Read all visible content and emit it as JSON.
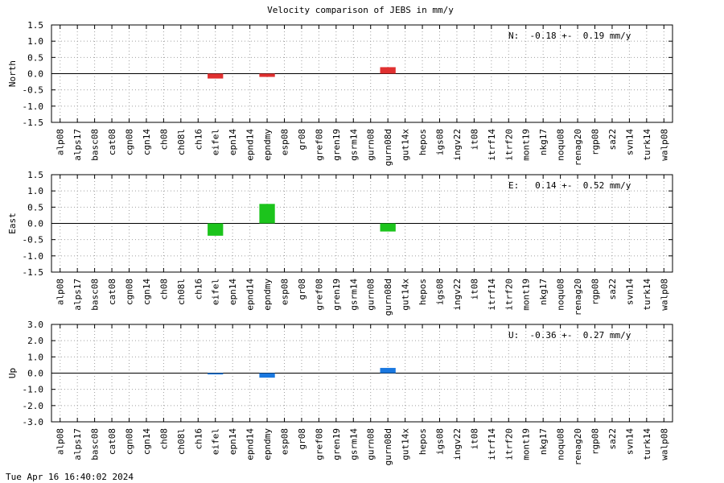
{
  "title": "Velocity comparison of JEBS in mm/y",
  "timestamp": "Tue Apr 16 16:40:02 2024",
  "chart_data": [
    {
      "type": "bar",
      "ylabel": "North",
      "ylim": [
        -1.5,
        1.5
      ],
      "yticks": [
        "1.5",
        "1.0",
        "0.5",
        "0.0",
        "-0.5",
        "-1.0",
        "-1.5"
      ],
      "stat": "N:  -0.18 +-  0.19 mm/y",
      "color": "#e03030",
      "grid": true,
      "categories": [
        "alp08",
        "alps17",
        "basc08",
        "cat08",
        "cgn08",
        "cgn14",
        "ch08",
        "ch08l",
        "ch16",
        "eifel",
        "epn14",
        "epnd14",
        "epndmy",
        "esp08",
        "gr08",
        "gref08",
        "gren19",
        "gsrm14",
        "gurn08",
        "gurn08d",
        "gut14x",
        "hepos",
        "igs08",
        "ingv22",
        "it08",
        "itrf14",
        "itrf20",
        "mont19",
        "nkg17",
        "noqu08",
        "renag20",
        "rgp08",
        "sa22",
        "svn14",
        "turk14",
        "walp08"
      ],
      "values": [
        0,
        0,
        0,
        0,
        0,
        0,
        0,
        0,
        0,
        -0.15,
        0,
        0,
        -0.1,
        0,
        0,
        0,
        0,
        0,
        0,
        0.2,
        0,
        0,
        0,
        0,
        0,
        0,
        0,
        0,
        0,
        0,
        0,
        0,
        0,
        0,
        0,
        0
      ]
    },
    {
      "type": "bar",
      "ylabel": "East",
      "ylim": [
        -1.5,
        1.5
      ],
      "yticks": [
        "1.5",
        "1.0",
        "0.5",
        "0.0",
        "-0.5",
        "-1.0",
        "-1.5"
      ],
      "stat": "E:   0.14 +-  0.52 mm/y",
      "color": "#1cc41c",
      "grid": true,
      "categories": [
        "alp08",
        "alps17",
        "basc08",
        "cat08",
        "cgn08",
        "cgn14",
        "ch08",
        "ch08l",
        "ch16",
        "eifel",
        "epn14",
        "epnd14",
        "epndmy",
        "esp08",
        "gr08",
        "gref08",
        "gren19",
        "gsrm14",
        "gurn08",
        "gurn08d",
        "gut14x",
        "hepos",
        "igs08",
        "ingv22",
        "it08",
        "itrf14",
        "itrf20",
        "mont19",
        "nkg17",
        "noqu08",
        "renag20",
        "rgp08",
        "sa22",
        "svn14",
        "turk14",
        "walp08"
      ],
      "values": [
        0,
        0,
        0,
        0,
        0,
        0,
        0,
        0,
        0,
        -0.38,
        0,
        0,
        0.6,
        0,
        0,
        0,
        0,
        0,
        0,
        -0.25,
        0,
        0,
        0,
        0,
        0,
        0,
        0,
        0,
        0,
        0,
        0,
        0,
        0,
        0,
        0,
        0
      ]
    },
    {
      "type": "bar",
      "ylabel": "Up",
      "ylim": [
        -3.0,
        3.0
      ],
      "yticks": [
        "3.0",
        "2.0",
        "1.0",
        "0.0",
        "-1.0",
        "-2.0",
        "-3.0"
      ],
      "stat": "U:  -0.36 +-  0.27 mm/y",
      "color": "#1a78e0",
      "grid": true,
      "categories": [
        "alp08",
        "alps17",
        "basc08",
        "cat08",
        "cgn08",
        "cgn14",
        "ch08",
        "ch08l",
        "ch16",
        "eifel",
        "epn14",
        "epnd14",
        "epndmy",
        "esp08",
        "gr08",
        "gref08",
        "gren19",
        "gsrm14",
        "gurn08",
        "gurn08d",
        "gut14x",
        "hepos",
        "igs08",
        "ingv22",
        "it08",
        "itrf14",
        "itrf20",
        "mont19",
        "nkg17",
        "noqu08",
        "renag20",
        "rgp08",
        "sa22",
        "svn14",
        "turk14",
        "walp08"
      ],
      "values": [
        0,
        0,
        0,
        0,
        0,
        0,
        0,
        0,
        0,
        -0.08,
        0,
        0,
        -0.28,
        0,
        0,
        0,
        0,
        0,
        0,
        0.32,
        0,
        0,
        0,
        0,
        0,
        0,
        0,
        0,
        0,
        0,
        0,
        0,
        0,
        0,
        0,
        0
      ]
    }
  ]
}
